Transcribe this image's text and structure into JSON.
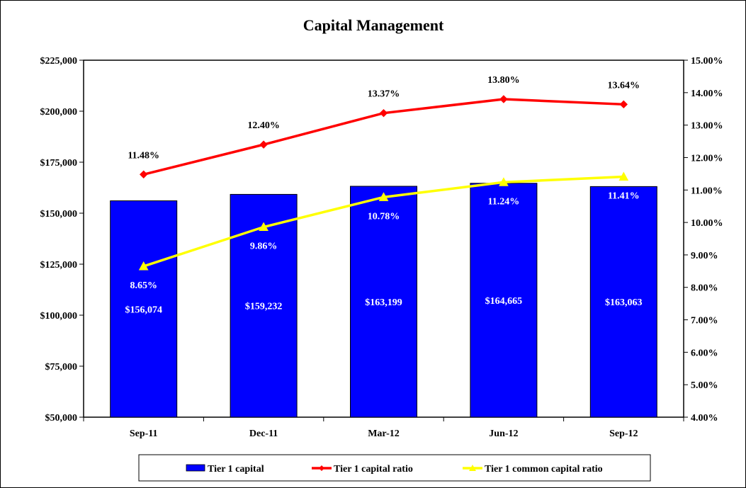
{
  "chart_data": {
    "type": "bar+line",
    "title": "Capital Management",
    "categories": [
      "Sep-11",
      "Dec-11",
      "Mar-12",
      "Jun-12",
      "Sep-12"
    ],
    "y_left": {
      "min": 50000,
      "max": 225000,
      "ticks": [
        50000,
        75000,
        100000,
        125000,
        150000,
        175000,
        200000,
        225000
      ],
      "tick_labels": [
        "$50,000",
        "$75,000",
        "$100,000",
        "$125,000",
        "$150,000",
        "$175,000",
        "$200,000",
        "$225,000"
      ]
    },
    "y_right": {
      "min": 4,
      "max": 15,
      "ticks": [
        4,
        5,
        6,
        7,
        8,
        9,
        10,
        11,
        12,
        13,
        14,
        15
      ],
      "tick_labels": [
        "4.00%",
        "5.00%",
        "6.00%",
        "7.00%",
        "8.00%",
        "9.00%",
        "10.00%",
        "11.00%",
        "12.00%",
        "13.00%",
        "14.00%",
        "15.00%"
      ]
    },
    "series": [
      {
        "name": "Tier 1 capital",
        "kind": "bar",
        "axis": "left",
        "color": "#0000FF",
        "values": [
          156074,
          159232,
          163199,
          164665,
          163063
        ],
        "labels": [
          "$156,074",
          "$159,232",
          "$163,199",
          "$164,665",
          "$163,063"
        ]
      },
      {
        "name": "Tier 1 capital ratio",
        "kind": "line",
        "axis": "right",
        "color": "#FF0000",
        "marker": "diamond",
        "values": [
          11.48,
          12.4,
          13.37,
          13.8,
          13.64
        ],
        "labels": [
          "11.48%",
          "12.40%",
          "13.37%",
          "13.80%",
          "13.64%"
        ]
      },
      {
        "name": "Tier 1 common capital ratio",
        "kind": "line",
        "axis": "right",
        "color": "#FFFF00",
        "marker": "triangle",
        "values": [
          8.65,
          9.86,
          10.78,
          11.24,
          11.41
        ],
        "labels": [
          "8.65%",
          "9.86%",
          "10.78%",
          "11.24%",
          "11.41%"
        ]
      }
    ],
    "grid": false,
    "legend_position": "bottom"
  }
}
